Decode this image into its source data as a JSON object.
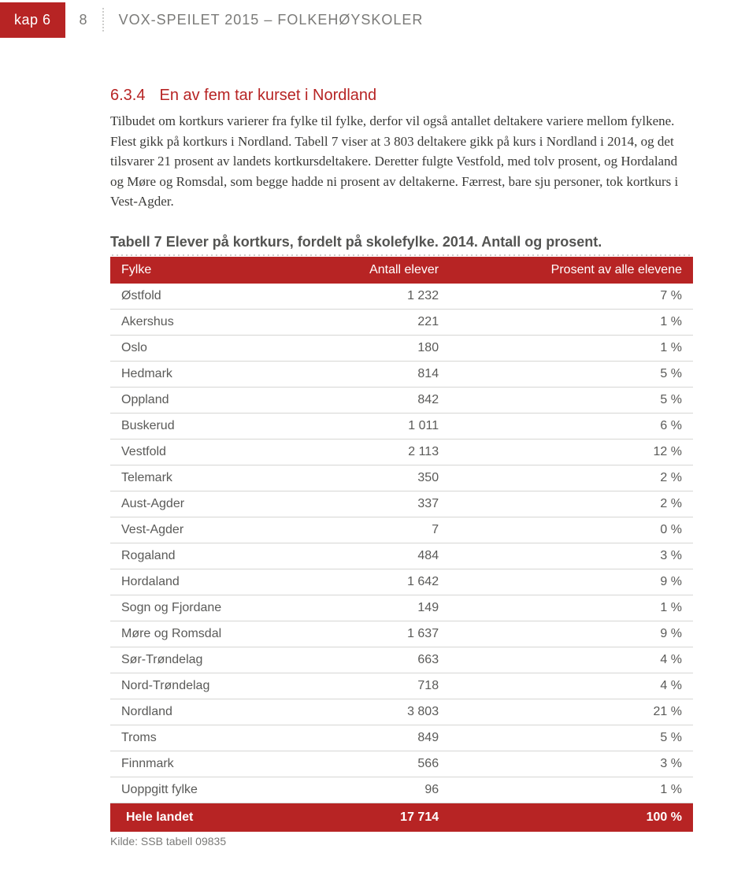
{
  "header": {
    "chapter_label": "kap 6",
    "page_number": "8",
    "doc_title": "VOX-SPEILET 2015 – FOLKEHØYSKOLER"
  },
  "section": {
    "number": "6.3.4",
    "title": "En av fem tar kurset i Nordland",
    "body": "Tilbudet om kortkurs varierer fra fylke til fylke, derfor vil også antallet deltakere variere mellom fylkene. Flest gikk på kortkurs i Nordland. Tabell 7 viser at 3 803 deltakere gikk på kurs i Nordland i 2014, og det tilsvarer 21 prosent av landets kortkursdeltakere. Deretter fulgte Vestfold, med tolv prosent, og Hordaland og Møre og Romsdal, som begge hadde ni prosent av deltakerne. Færrest, bare sju personer, tok kortkurs i Vest-Agder."
  },
  "table": {
    "caption": "Tabell 7 Elever på kortkurs, fordelt på skolefylke. 2014. Antall og prosent.",
    "columns": [
      "Fylke",
      "Antall elever",
      "Prosent av alle elevene"
    ],
    "rows": [
      [
        "Østfold",
        "1 232",
        "7 %"
      ],
      [
        "Akershus",
        "221",
        "1 %"
      ],
      [
        "Oslo",
        "180",
        "1 %"
      ],
      [
        "Hedmark",
        "814",
        "5 %"
      ],
      [
        "Oppland",
        "842",
        "5 %"
      ],
      [
        "Buskerud",
        "1 011",
        "6 %"
      ],
      [
        "Vestfold",
        "2 113",
        "12 %"
      ],
      [
        "Telemark",
        "350",
        "2 %"
      ],
      [
        "Aust-Agder",
        "337",
        "2 %"
      ],
      [
        "Vest-Agder",
        "7",
        "0 %"
      ],
      [
        "Rogaland",
        "484",
        "3 %"
      ],
      [
        "Hordaland",
        "1 642",
        "9 %"
      ],
      [
        "Sogn og Fjordane",
        "149",
        "1 %"
      ],
      [
        "Møre og Romsdal",
        "1 637",
        "9 %"
      ],
      [
        "Sør-Trøndelag",
        "663",
        "4 %"
      ],
      [
        "Nord-Trøndelag",
        "718",
        "4 %"
      ],
      [
        "Nordland",
        "3 803",
        "21 %"
      ],
      [
        "Troms",
        "849",
        "5 %"
      ],
      [
        "Finnmark",
        "566",
        "3 %"
      ],
      [
        "Uoppgitt fylke",
        "96",
        "1 %"
      ]
    ],
    "footer": [
      "Hele landet",
      "17 714",
      "100 %"
    ],
    "source": "Kilde: SSB tabell 09835"
  },
  "style": {
    "accent_color": "#b72424",
    "text_color": "#5a5a58",
    "body_text_color": "#3a3a38",
    "border_color": "#d6d6d4",
    "dot_color": "#c9c9c7",
    "background": "#ffffff",
    "header_fontsize": 18,
    "section_heading_fontsize": 20,
    "body_fontsize": 17,
    "table_fontsize": 16,
    "caption_fontsize": 18,
    "source_fontsize": 14
  }
}
